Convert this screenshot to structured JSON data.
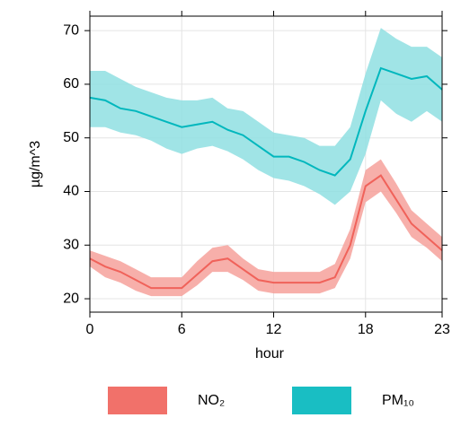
{
  "chart_data": {
    "type": "line",
    "x_label": "hour",
    "y_label": "µg/m^3",
    "x": [
      0,
      1,
      2,
      3,
      4,
      5,
      6,
      7,
      8,
      9,
      10,
      11,
      12,
      13,
      14,
      15,
      16,
      17,
      18,
      19,
      20,
      21,
      22,
      23
    ],
    "xlim": [
      0,
      23
    ],
    "xticks": [
      0,
      6,
      12,
      18,
      23
    ],
    "ylim": [
      17.5,
      72.7
    ],
    "yticks": [
      20,
      30,
      40,
      50,
      60,
      70
    ],
    "grid": true,
    "series": [
      {
        "name": "NO₂",
        "color": "#f0625a",
        "band_color": "#f6a19b",
        "values": [
          27.5,
          26,
          25,
          23.5,
          22,
          22,
          22,
          24.5,
          27,
          27.5,
          25.5,
          23.5,
          23,
          23,
          23,
          23,
          24,
          30,
          41,
          43,
          38.5,
          34,
          31.5,
          29
        ],
        "lower": [
          26,
          24,
          23,
          21.5,
          20.5,
          20.5,
          20.5,
          22.5,
          25,
          25,
          23.5,
          21.5,
          21,
          21,
          21,
          21,
          22,
          27.5,
          38,
          40,
          36,
          31.5,
          29.5,
          27
        ],
        "upper": [
          29,
          28,
          27,
          25.5,
          24,
          24,
          24,
          27,
          29.5,
          30,
          27.5,
          25.5,
          25,
          25,
          25,
          25,
          26.5,
          33,
          44,
          46,
          41.5,
          36.5,
          34,
          31.5
        ]
      },
      {
        "name": "PM₁₀",
        "color": "#00b7bd",
        "band_color": "#8fdfe2",
        "values": [
          57.5,
          57,
          55.5,
          55,
          54,
          53,
          52,
          52.5,
          53,
          51.5,
          50.5,
          48.5,
          46.5,
          46.5,
          45.5,
          44,
          43,
          46,
          55,
          63,
          62,
          61,
          61.5,
          59
        ],
        "lower": [
          52,
          52,
          51,
          50.5,
          49.5,
          48,
          47,
          48,
          48.5,
          47.5,
          46,
          44,
          42.5,
          42,
          41,
          39.5,
          37.5,
          40,
          47,
          57,
          54.5,
          53,
          55,
          53
        ],
        "upper": [
          62.5,
          62.5,
          61,
          59.5,
          58.5,
          57.5,
          57,
          57,
          57.5,
          55.5,
          55,
          53,
          51,
          50.5,
          50,
          48.5,
          48.5,
          52,
          62,
          70.5,
          68.5,
          67,
          67,
          65
        ]
      }
    ]
  }
}
